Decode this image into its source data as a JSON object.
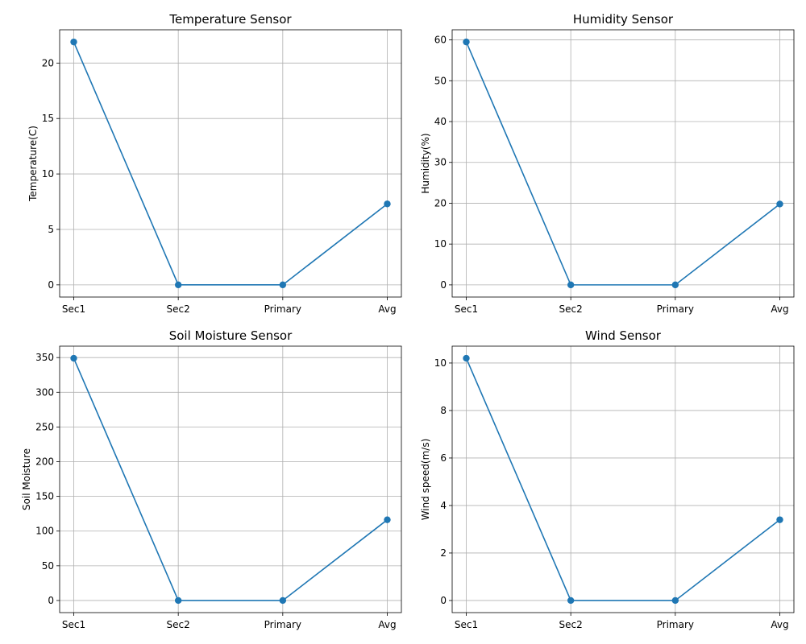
{
  "chart_data": [
    {
      "type": "line",
      "title": "Temperature Sensor",
      "xlabel": "",
      "ylabel": "Temperature(C)",
      "categories": [
        "Sec1",
        "Sec2",
        "Primary",
        "Avg"
      ],
      "series": [
        {
          "values": [
            21.9,
            0,
            0,
            7.3
          ],
          "color": "#1f77b4",
          "marker": "circle"
        }
      ],
      "ylim": [
        -1.1,
        23.0
      ],
      "yticks": [
        0,
        5,
        10,
        15,
        20
      ],
      "grid": true
    },
    {
      "type": "line",
      "title": "Humidity Sensor",
      "xlabel": "",
      "ylabel": "Humidity(%)",
      "categories": [
        "Sec1",
        "Sec2",
        "Primary",
        "Avg"
      ],
      "series": [
        {
          "values": [
            59.5,
            0,
            0,
            19.8
          ],
          "color": "#1f77b4",
          "marker": "circle"
        }
      ],
      "ylim": [
        -2.98,
        62.48
      ],
      "yticks": [
        0,
        10,
        20,
        30,
        40,
        50,
        60
      ],
      "grid": true
    },
    {
      "type": "line",
      "title": "Soil Moisture Sensor",
      "xlabel": "",
      "ylabel": "Soil Moisture",
      "categories": [
        "Sec1",
        "Sec2",
        "Primary",
        "Avg"
      ],
      "series": [
        {
          "values": [
            349,
            0,
            0,
            116.3
          ],
          "color": "#1f77b4",
          "marker": "circle"
        }
      ],
      "ylim": [
        -17.45,
        366.45
      ],
      "yticks": [
        0,
        50,
        100,
        150,
        200,
        250,
        300,
        350
      ],
      "grid": true
    },
    {
      "type": "line",
      "title": "Wind Sensor",
      "xlabel": "",
      "ylabel": "Wind speed(m/s)",
      "categories": [
        "Sec1",
        "Sec2",
        "Primary",
        "Avg"
      ],
      "series": [
        {
          "values": [
            10.2,
            0,
            0,
            3.4
          ],
          "color": "#1f77b4",
          "marker": "circle"
        }
      ],
      "ylim": [
        -0.51,
        10.71
      ],
      "yticks": [
        0,
        2,
        4,
        6,
        8,
        10
      ],
      "grid": true
    }
  ]
}
